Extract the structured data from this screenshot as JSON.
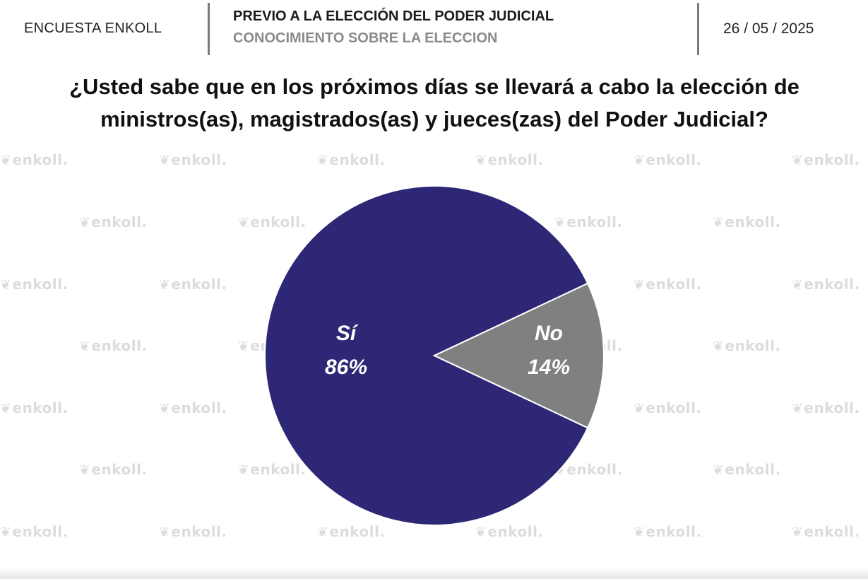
{
  "header": {
    "brand": "ENCUESTA ENKOLL",
    "title": "PREVIO A LA ELECCIÓN DEL PODER JUDICIAL",
    "subtitle": "CONOCIMIENTO SOBRE LA ELECCION",
    "date": "26 / 05 / 2025"
  },
  "question": "¿Usted sabe que en los próximos días se llevará a cabo la elección de ministros(as), magistrados(as) y jueces(zas) del Poder Judicial?",
  "watermark": "enkoll.",
  "colors": {
    "si": "#2e2775",
    "no": "#808080",
    "divider": "#7a7a7a"
  },
  "chart_data": {
    "type": "pie",
    "title": "",
    "slices": [
      {
        "label": "Sí",
        "value": 86,
        "display": "86%",
        "color": "#2e2775"
      },
      {
        "label": "No",
        "value": 14,
        "display": "14%",
        "color": "#808080"
      }
    ]
  }
}
